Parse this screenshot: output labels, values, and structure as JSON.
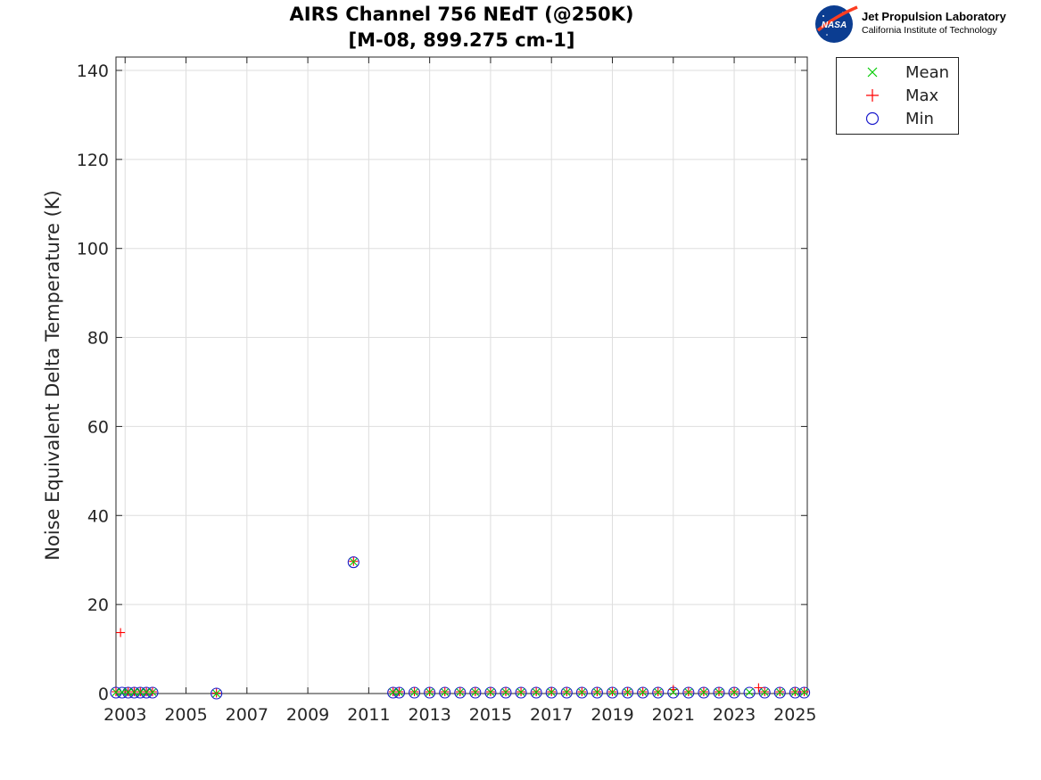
{
  "title_line1": "AIRS Channel 756 NEdT (@250K)",
  "title_line2": "[M-08, 899.275 cm-1]",
  "logo": {
    "badge_text": "NASA",
    "org_name": "Jet Propulsion Laboratory",
    "org_sub": "California Institute of Technology"
  },
  "colors": {
    "mean": "#00cc00",
    "max": "#ff0000",
    "min": "#1a1acc",
    "grid": "#dedede",
    "axis": "#262626"
  },
  "legend": [
    {
      "key": "mean",
      "label": "Mean",
      "marker": "x"
    },
    {
      "key": "max",
      "label": "Max",
      "marker": "+"
    },
    {
      "key": "min",
      "label": "Min",
      "marker": "o"
    }
  ],
  "chart_data": {
    "type": "scatter",
    "ylabel": "Noise Equivalent Delta Temperature (K)",
    "xlabel": "",
    "xlim": [
      2002.7,
      2025.4
    ],
    "ylim": [
      0,
      143
    ],
    "xticks": [
      2003,
      2005,
      2007,
      2009,
      2011,
      2013,
      2015,
      2017,
      2019,
      2021,
      2023,
      2025
    ],
    "yticks": [
      0,
      20,
      40,
      60,
      80,
      100,
      120,
      140
    ],
    "grid": true,
    "legend_position": "outside-top-right",
    "series": [
      {
        "name": "Mean",
        "marker": "x",
        "points": [
          [
            2002.7,
            0.3
          ],
          [
            2002.9,
            0.3
          ],
          [
            2003.1,
            0.3
          ],
          [
            2003.3,
            0.3
          ],
          [
            2003.5,
            0.3
          ],
          [
            2003.7,
            0.3
          ],
          [
            2003.9,
            0.3
          ],
          [
            2006.0,
            0.0
          ],
          [
            2010.5,
            29.6
          ],
          [
            2011.8,
            0.3
          ],
          [
            2012.0,
            0.3
          ],
          [
            2012.5,
            0.3
          ],
          [
            2013.0,
            0.3
          ],
          [
            2013.5,
            0.3
          ],
          [
            2014.0,
            0.3
          ],
          [
            2014.5,
            0.3
          ],
          [
            2015.0,
            0.3
          ],
          [
            2015.5,
            0.3
          ],
          [
            2016.0,
            0.3
          ],
          [
            2016.5,
            0.3
          ],
          [
            2017.0,
            0.3
          ],
          [
            2017.5,
            0.3
          ],
          [
            2018.0,
            0.3
          ],
          [
            2018.5,
            0.3
          ],
          [
            2019.0,
            0.3
          ],
          [
            2019.5,
            0.3
          ],
          [
            2020.0,
            0.3
          ],
          [
            2020.5,
            0.3
          ],
          [
            2021.0,
            0.3
          ],
          [
            2021.5,
            0.3
          ],
          [
            2022.0,
            0.3
          ],
          [
            2022.5,
            0.3
          ],
          [
            2023.0,
            0.3
          ],
          [
            2023.5,
            0.3
          ],
          [
            2024.0,
            0.3
          ],
          [
            2024.5,
            0.3
          ],
          [
            2025.0,
            0.3
          ],
          [
            2025.3,
            0.3
          ]
        ]
      },
      {
        "name": "Max",
        "marker": "+",
        "points": [
          [
            2002.7,
            0.4
          ],
          [
            2002.85,
            13.7
          ],
          [
            2003.1,
            0.4
          ],
          [
            2003.3,
            0.4
          ],
          [
            2003.5,
            0.4
          ],
          [
            2003.7,
            0.4
          ],
          [
            2003.9,
            0.4
          ],
          [
            2006.0,
            0.1
          ],
          [
            2010.5,
            29.7
          ],
          [
            2011.8,
            0.4
          ],
          [
            2012.0,
            0.4
          ],
          [
            2012.5,
            0.4
          ],
          [
            2013.0,
            0.4
          ],
          [
            2013.5,
            0.4
          ],
          [
            2014.0,
            0.4
          ],
          [
            2014.5,
            0.4
          ],
          [
            2015.0,
            0.4
          ],
          [
            2015.5,
            0.4
          ],
          [
            2016.0,
            0.4
          ],
          [
            2016.5,
            0.4
          ],
          [
            2017.0,
            0.4
          ],
          [
            2017.5,
            0.4
          ],
          [
            2018.0,
            0.4
          ],
          [
            2018.5,
            0.4
          ],
          [
            2019.0,
            0.4
          ],
          [
            2019.5,
            0.4
          ],
          [
            2020.0,
            0.4
          ],
          [
            2020.5,
            0.4
          ],
          [
            2021.0,
            0.9
          ],
          [
            2021.5,
            0.4
          ],
          [
            2022.0,
            0.4
          ],
          [
            2022.5,
            0.4
          ],
          [
            2023.0,
            0.4
          ],
          [
            2023.8,
            1.3
          ],
          [
            2024.0,
            0.4
          ],
          [
            2024.5,
            0.4
          ],
          [
            2025.0,
            0.4
          ],
          [
            2025.3,
            0.4
          ]
        ]
      },
      {
        "name": "Min",
        "marker": "o",
        "points": [
          [
            2002.7,
            0.2
          ],
          [
            2002.9,
            0.2
          ],
          [
            2003.1,
            0.2
          ],
          [
            2003.3,
            0.2
          ],
          [
            2003.5,
            0.2
          ],
          [
            2003.7,
            0.2
          ],
          [
            2003.9,
            0.2
          ],
          [
            2006.0,
            0.0
          ],
          [
            2010.5,
            29.5
          ],
          [
            2011.8,
            0.2
          ],
          [
            2012.0,
            0.2
          ],
          [
            2012.5,
            0.2
          ],
          [
            2013.0,
            0.2
          ],
          [
            2013.5,
            0.2
          ],
          [
            2014.0,
            0.2
          ],
          [
            2014.5,
            0.2
          ],
          [
            2015.0,
            0.2
          ],
          [
            2015.5,
            0.2
          ],
          [
            2016.0,
            0.2
          ],
          [
            2016.5,
            0.2
          ],
          [
            2017.0,
            0.2
          ],
          [
            2017.5,
            0.2
          ],
          [
            2018.0,
            0.2
          ],
          [
            2018.5,
            0.2
          ],
          [
            2019.0,
            0.2
          ],
          [
            2019.5,
            0.2
          ],
          [
            2020.0,
            0.2
          ],
          [
            2020.5,
            0.2
          ],
          [
            2021.0,
            0.2
          ],
          [
            2021.5,
            0.2
          ],
          [
            2022.0,
            0.2
          ],
          [
            2022.5,
            0.2
          ],
          [
            2023.0,
            0.2
          ],
          [
            2023.5,
            0.2
          ],
          [
            2024.0,
            0.2
          ],
          [
            2024.5,
            0.2
          ],
          [
            2025.0,
            0.2
          ],
          [
            2025.3,
            0.2
          ]
        ]
      }
    ]
  }
}
